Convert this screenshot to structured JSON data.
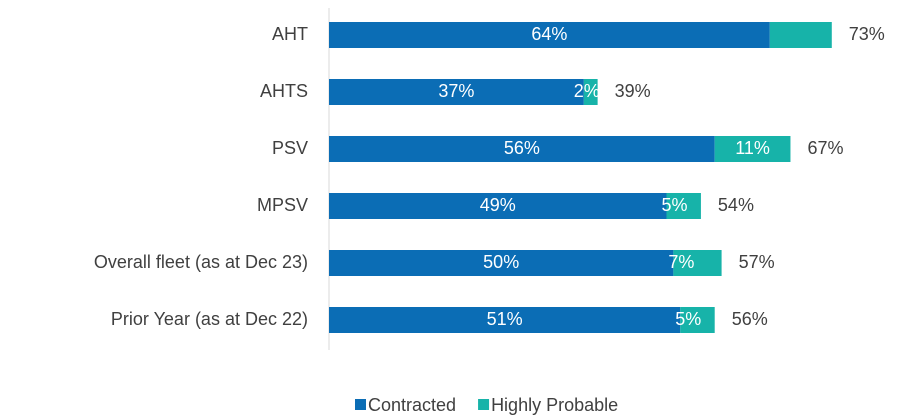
{
  "chart_data": {
    "type": "stacked-bar-horizontal",
    "categories": [
      "AHT",
      "AHTS",
      "PSV",
      "MPSV",
      "Overall fleet (as at Dec 23)",
      "Prior Year (as at Dec 22)"
    ],
    "series": [
      {
        "name": "Contracted",
        "color": "#0b6db5",
        "values": [
          64,
          37,
          56,
          49,
          50,
          51
        ],
        "value_labels": [
          "64%",
          "37%",
          "56%",
          "49%",
          "50%",
          "51%"
        ]
      },
      {
        "name": "Highly Probable",
        "color": "#17b3a9",
        "values": [
          9,
          2,
          11,
          5,
          7,
          5
        ],
        "value_labels": [
          null,
          "2%",
          "11%",
          "5%",
          "7%",
          "5%"
        ]
      }
    ],
    "total_labels": [
      "73%",
      "39%",
      "67%",
      "54%",
      "57%",
      "56%"
    ],
    "xlim": [
      0,
      80
    ],
    "legend": "bottom"
  }
}
